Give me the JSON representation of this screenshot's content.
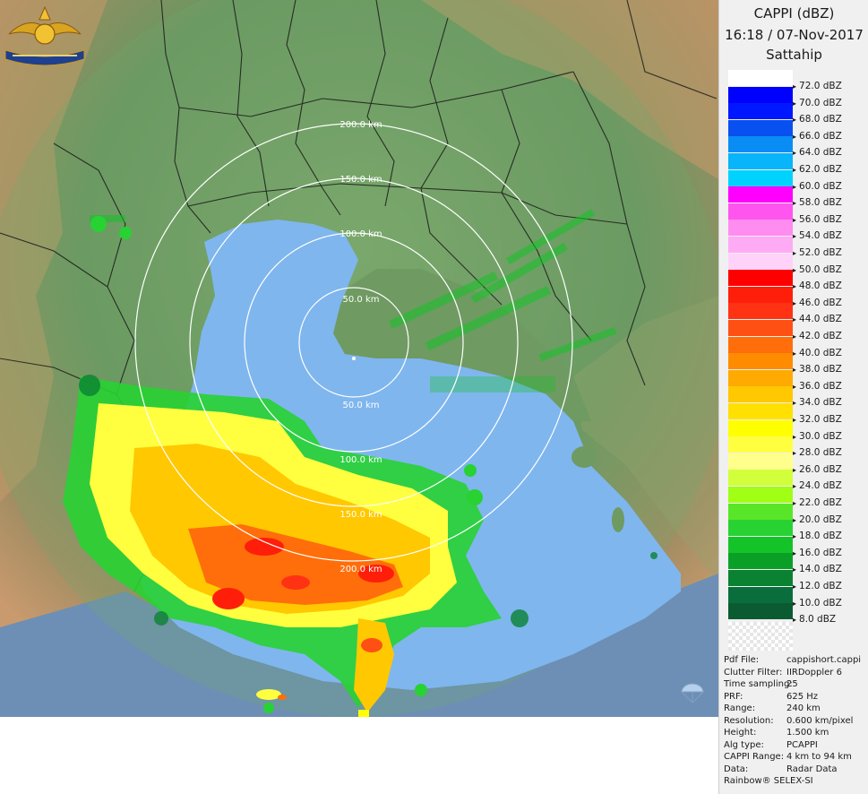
{
  "panel": {
    "title": "CAPPI (dBZ)",
    "datetime": "16:18 / 07-Nov-2017",
    "site": "Sattahip"
  },
  "legend": [
    {
      "label": "72.0 dBZ",
      "color": "#ffffff"
    },
    {
      "label": "70.0 dBZ",
      "color": "#0000ff"
    },
    {
      "label": "68.0 dBZ",
      "color": "#0018ff"
    },
    {
      "label": "66.0 dBZ",
      "color": "#0850f0"
    },
    {
      "label": "64.0 dBZ",
      "color": "#0a8cf5"
    },
    {
      "label": "62.0 dBZ",
      "color": "#08b4fa"
    },
    {
      "label": "60.0 dBZ",
      "color": "#00d2ff"
    },
    {
      "label": "58.0 dBZ",
      "color": "#ff00ff"
    },
    {
      "label": "56.0 dBZ",
      "color": "#ff55ee"
    },
    {
      "label": "54.0 dBZ",
      "color": "#ff8cf0"
    },
    {
      "label": "52.0 dBZ",
      "color": "#ffaaf5"
    },
    {
      "label": "50.0 dBZ",
      "color": "#ffd2fa"
    },
    {
      "label": "48.0 dBZ",
      "color": "#ff0000"
    },
    {
      "label": "46.0 dBZ",
      "color": "#ff1e0a"
    },
    {
      "label": "44.0 dBZ",
      "color": "#ff3214"
    },
    {
      "label": "42.0 dBZ",
      "color": "#ff5014"
    },
    {
      "label": "40.0 dBZ",
      "color": "#ff6e0a"
    },
    {
      "label": "38.0 dBZ",
      "color": "#ff8c00"
    },
    {
      "label": "36.0 dBZ",
      "color": "#ffaa00"
    },
    {
      "label": "34.0 dBZ",
      "color": "#ffc800"
    },
    {
      "label": "32.0 dBZ",
      "color": "#ffe000"
    },
    {
      "label": "30.0 dBZ",
      "color": "#ffff00"
    },
    {
      "label": "28.0 dBZ",
      "color": "#ffff40"
    },
    {
      "label": "26.0 dBZ",
      "color": "#ffff8c"
    },
    {
      "label": "24.0 dBZ",
      "color": "#d2ff3c"
    },
    {
      "label": "22.0 dBZ",
      "color": "#a0ff14"
    },
    {
      "label": "20.0 dBZ",
      "color": "#5ae628"
    },
    {
      "label": "18.0 dBZ",
      "color": "#28d232"
    },
    {
      "label": "16.0 dBZ",
      "color": "#14c328"
    },
    {
      "label": "14.0 dBZ",
      "color": "#0aa028"
    },
    {
      "label": "12.0 dBZ",
      "color": "#0a8232"
    },
    {
      "label": "10.0 dBZ",
      "color": "#0a6e3c"
    },
    {
      "label": "8.0 dBZ",
      "color": "#0a5a32"
    }
  ],
  "info": [
    {
      "key": "Pdf File:",
      "value": "cappishort.cappi"
    },
    {
      "key": "Clutter Filter:",
      "value": "IIRDoppler 6"
    },
    {
      "key": "Time sampling:",
      "value": "25"
    },
    {
      "key": "PRF:",
      "value": "625 Hz"
    },
    {
      "key": "Range:",
      "value": "240 km"
    },
    {
      "key": "Resolution:",
      "value": "0.600 km/pixel"
    },
    {
      "key": "Height:",
      "value": "1.500 km"
    },
    {
      "key": "Alg type:",
      "value": "PCAPPI"
    },
    {
      "key": "CAPPI Range:",
      "value": "4 km to 94 km"
    },
    {
      "key": "Data:",
      "value": "Radar Data"
    }
  ],
  "footer": "Rainbow® SELEX-SI",
  "range_rings": {
    "unit": "km",
    "rings": [
      {
        "range_km": 50,
        "label": "50.0 km"
      },
      {
        "range_km": 100,
        "label": "100.0 km"
      },
      {
        "range_km": 150,
        "label": "150.0 km"
      },
      {
        "range_km": 200,
        "label": "200.0 km"
      }
    ],
    "labels_south": [
      "50.0 km",
      "100.0 km",
      "150.0 km",
      "200.0 km"
    ]
  },
  "colors": {
    "sea": "#7fb6ee",
    "land_low": "#6f9a62",
    "land_high": "#c79a6a",
    "outer_sea": "#6d8fb5"
  }
}
